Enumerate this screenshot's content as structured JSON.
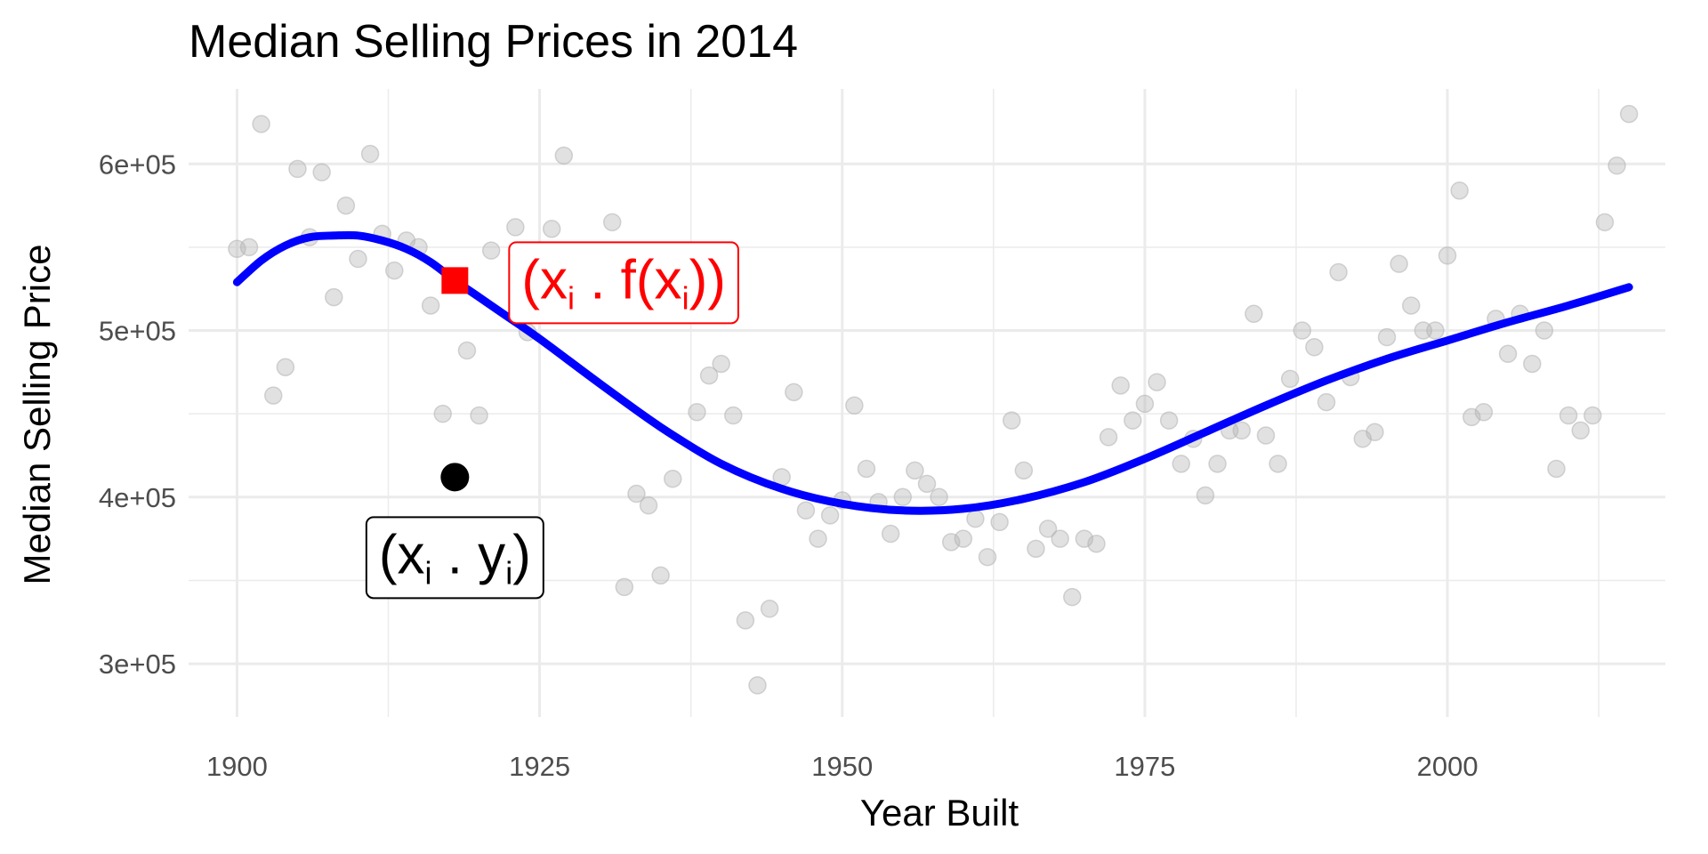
{
  "chart_data": {
    "type": "scatter",
    "title": "Median Selling Prices in 2014",
    "xlabel": "Year Built",
    "ylabel": "Median Selling Price",
    "xlim": [
      1896,
      2018
    ],
    "ylim": [
      268000,
      645000
    ],
    "x_ticks": [
      1900,
      1925,
      1950,
      1975,
      2000
    ],
    "x_tick_labels": [
      "1900",
      "1925",
      "1950",
      "1975",
      "2000"
    ],
    "y_ticks": [
      300000,
      400000,
      500000,
      600000
    ],
    "y_tick_labels": [
      "3e+05",
      "4e+05",
      "5e+05",
      "6e+05"
    ],
    "grid": true,
    "colors": {
      "points": "#b3b3b3",
      "curve": "#0000ff",
      "fitted": "#ff0000",
      "observed": "#000000",
      "grid": "#ebebeb"
    },
    "points": [
      [
        1900,
        549000
      ],
      [
        1901,
        550000
      ],
      [
        1902,
        624000
      ],
      [
        1903,
        461000
      ],
      [
        1904,
        478000
      ],
      [
        1905,
        597000
      ],
      [
        1906,
        556000
      ],
      [
        1907,
        595000
      ],
      [
        1908,
        520000
      ],
      [
        1909,
        575000
      ],
      [
        1910,
        543000
      ],
      [
        1911,
        606000
      ],
      [
        1912,
        558000
      ],
      [
        1913,
        536000
      ],
      [
        1914,
        554000
      ],
      [
        1915,
        550000
      ],
      [
        1916,
        515000
      ],
      [
        1917,
        450000
      ],
      [
        1919,
        488000
      ],
      [
        1920,
        449000
      ],
      [
        1921,
        548000
      ],
      [
        1923,
        562000
      ],
      [
        1924,
        499000
      ],
      [
        1926,
        561000
      ],
      [
        1927,
        605000
      ],
      [
        1931,
        565000
      ],
      [
        1932,
        346000
      ],
      [
        1933,
        402000
      ],
      [
        1934,
        395000
      ],
      [
        1935,
        353000
      ],
      [
        1936,
        411000
      ],
      [
        1938,
        451000
      ],
      [
        1939,
        473000
      ],
      [
        1940,
        480000
      ],
      [
        1941,
        449000
      ],
      [
        1942,
        326000
      ],
      [
        1943,
        287000
      ],
      [
        1944,
        333000
      ],
      [
        1945,
        412000
      ],
      [
        1946,
        463000
      ],
      [
        1947,
        392000
      ],
      [
        1948,
        375000
      ],
      [
        1949,
        389000
      ],
      [
        1950,
        398000
      ],
      [
        1951,
        455000
      ],
      [
        1952,
        417000
      ],
      [
        1953,
        397000
      ],
      [
        1954,
        378000
      ],
      [
        1955,
        400000
      ],
      [
        1956,
        416000
      ],
      [
        1957,
        408000
      ],
      [
        1958,
        400000
      ],
      [
        1959,
        373000
      ],
      [
        1960,
        375000
      ],
      [
        1961,
        387000
      ],
      [
        1962,
        364000
      ],
      [
        1963,
        385000
      ],
      [
        1964,
        446000
      ],
      [
        1965,
        416000
      ],
      [
        1966,
        369000
      ],
      [
        1967,
        381000
      ],
      [
        1968,
        375000
      ],
      [
        1969,
        340000
      ],
      [
        1970,
        375000
      ],
      [
        1971,
        372000
      ],
      [
        1972,
        436000
      ],
      [
        1973,
        467000
      ],
      [
        1974,
        446000
      ],
      [
        1975,
        456000
      ],
      [
        1976,
        469000
      ],
      [
        1977,
        446000
      ],
      [
        1978,
        420000
      ],
      [
        1979,
        435000
      ],
      [
        1980,
        401000
      ],
      [
        1981,
        420000
      ],
      [
        1982,
        440000
      ],
      [
        1983,
        440000
      ],
      [
        1984,
        510000
      ],
      [
        1985,
        437000
      ],
      [
        1986,
        420000
      ],
      [
        1987,
        471000
      ],
      [
        1988,
        500000
      ],
      [
        1989,
        490000
      ],
      [
        1990,
        457000
      ],
      [
        1991,
        535000
      ],
      [
        1992,
        472000
      ],
      [
        1993,
        435000
      ],
      [
        1994,
        439000
      ],
      [
        1995,
        496000
      ],
      [
        1996,
        540000
      ],
      [
        1997,
        515000
      ],
      [
        1998,
        500000
      ],
      [
        1999,
        500000
      ],
      [
        2000,
        545000
      ],
      [
        2001,
        584000
      ],
      [
        2002,
        448000
      ],
      [
        2003,
        451000
      ],
      [
        2004,
        507000
      ],
      [
        2005,
        486000
      ],
      [
        2006,
        510000
      ],
      [
        2007,
        480000
      ],
      [
        2008,
        500000
      ],
      [
        2009,
        417000
      ],
      [
        2010,
        449000
      ],
      [
        2011,
        440000
      ],
      [
        2012,
        449000
      ],
      [
        2013,
        565000
      ],
      [
        2014,
        599000
      ],
      [
        2015,
        630000
      ]
    ],
    "smooth_curve": {
      "x": [
        1900,
        1902,
        1904,
        1906,
        1908,
        1910,
        1912,
        1914,
        1916,
        1918,
        1920,
        1922,
        1925,
        1930,
        1935,
        1940,
        1945,
        1950,
        1955,
        1960,
        1965,
        1970,
        1975,
        1980,
        1985,
        1990,
        1995,
        2000,
        2005,
        2010,
        2015
      ],
      "y": [
        529000,
        542000,
        551000,
        556000,
        557000,
        557000,
        554000,
        549000,
        541000,
        530000,
        520000,
        510000,
        495000,
        468000,
        442000,
        420000,
        405000,
        396000,
        392000,
        393000,
        399000,
        409000,
        423000,
        439000,
        455000,
        470000,
        483000,
        494000,
        505000,
        515000,
        526000
      ]
    },
    "highlight": {
      "x": 1918,
      "observed_y": 412000,
      "fitted_y": 530000
    },
    "annotations": {
      "observed": {
        "open": "(x",
        "sub1": "i",
        "mid": " . y",
        "sub2": "i",
        "close": ")"
      },
      "fitted": {
        "open": "(x",
        "sub1": "i",
        "mid": " . f(x",
        "sub2": "i",
        "close": "))"
      }
    }
  }
}
